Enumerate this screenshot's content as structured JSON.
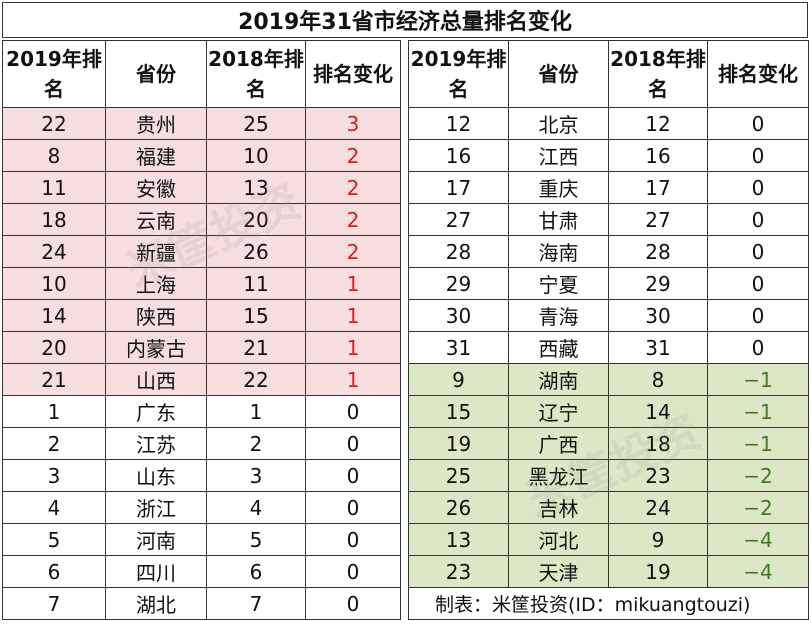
{
  "title": "2019年31省市经济总量排名变化",
  "headers": {
    "rank2019": "2019年排名",
    "province": "省份",
    "rank2018": "2018年排名",
    "change": "排名变化"
  },
  "left_rows": [
    {
      "rank2019": "22",
      "province": "贵州",
      "rank2018": "25",
      "change": "3",
      "trend": "up"
    },
    {
      "rank2019": "8",
      "province": "福建",
      "rank2018": "10",
      "change": "2",
      "trend": "up"
    },
    {
      "rank2019": "11",
      "province": "安徽",
      "rank2018": "13",
      "change": "2",
      "trend": "up"
    },
    {
      "rank2019": "18",
      "province": "云南",
      "rank2018": "20",
      "change": "2",
      "trend": "up"
    },
    {
      "rank2019": "24",
      "province": "新疆",
      "rank2018": "26",
      "change": "2",
      "trend": "up"
    },
    {
      "rank2019": "10",
      "province": "上海",
      "rank2018": "11",
      "change": "1",
      "trend": "up"
    },
    {
      "rank2019": "14",
      "province": "陕西",
      "rank2018": "15",
      "change": "1",
      "trend": "up"
    },
    {
      "rank2019": "20",
      "province": "内蒙古",
      "rank2018": "21",
      "change": "1",
      "trend": "up"
    },
    {
      "rank2019": "21",
      "province": "山西",
      "rank2018": "22",
      "change": "1",
      "trend": "up"
    },
    {
      "rank2019": "1",
      "province": "广东",
      "rank2018": "1",
      "change": "0",
      "trend": "same"
    },
    {
      "rank2019": "2",
      "province": "江苏",
      "rank2018": "2",
      "change": "0",
      "trend": "same"
    },
    {
      "rank2019": "3",
      "province": "山东",
      "rank2018": "3",
      "change": "0",
      "trend": "same"
    },
    {
      "rank2019": "4",
      "province": "浙江",
      "rank2018": "4",
      "change": "0",
      "trend": "same"
    },
    {
      "rank2019": "5",
      "province": "河南",
      "rank2018": "5",
      "change": "0",
      "trend": "same"
    },
    {
      "rank2019": "6",
      "province": "四川",
      "rank2018": "6",
      "change": "0",
      "trend": "same"
    },
    {
      "rank2019": "7",
      "province": "湖北",
      "rank2018": "7",
      "change": "0",
      "trend": "same"
    }
  ],
  "right_rows": [
    {
      "rank2019": "12",
      "province": "北京",
      "rank2018": "12",
      "change": "0",
      "trend": "same"
    },
    {
      "rank2019": "16",
      "province": "江西",
      "rank2018": "16",
      "change": "0",
      "trend": "same"
    },
    {
      "rank2019": "17",
      "province": "重庆",
      "rank2018": "17",
      "change": "0",
      "trend": "same"
    },
    {
      "rank2019": "27",
      "province": "甘肃",
      "rank2018": "27",
      "change": "0",
      "trend": "same"
    },
    {
      "rank2019": "28",
      "province": "海南",
      "rank2018": "28",
      "change": "0",
      "trend": "same"
    },
    {
      "rank2019": "29",
      "province": "宁夏",
      "rank2018": "29",
      "change": "0",
      "trend": "same"
    },
    {
      "rank2019": "30",
      "province": "青海",
      "rank2018": "30",
      "change": "0",
      "trend": "same"
    },
    {
      "rank2019": "31",
      "province": "西藏",
      "rank2018": "31",
      "change": "0",
      "trend": "same"
    },
    {
      "rank2019": "9",
      "province": "湖南",
      "rank2018": "8",
      "change": "−1",
      "trend": "down"
    },
    {
      "rank2019": "15",
      "province": "辽宁",
      "rank2018": "14",
      "change": "−1",
      "trend": "down"
    },
    {
      "rank2019": "19",
      "province": "广西",
      "rank2018": "18",
      "change": "−1",
      "trend": "down"
    },
    {
      "rank2019": "25",
      "province": "黑龙江",
      "rank2018": "23",
      "change": "−2",
      "trend": "down"
    },
    {
      "rank2019": "26",
      "province": "吉林",
      "rank2018": "24",
      "change": "−2",
      "trend": "down"
    },
    {
      "rank2019": "13",
      "province": "河北",
      "rank2018": "9",
      "change": "−4",
      "trend": "down"
    },
    {
      "rank2019": "23",
      "province": "天津",
      "rank2018": "19",
      "change": "−4",
      "trend": "down"
    }
  ],
  "footnote": "制表：米筐投资(ID：mikuangtouzi)",
  "watermark": "米筐投资",
  "colors": {
    "up_bg": "#f6dede",
    "down_bg": "#dce7c6",
    "up_text": "#d0211a",
    "down_text": "#3f7a1b",
    "border": "#333333"
  }
}
